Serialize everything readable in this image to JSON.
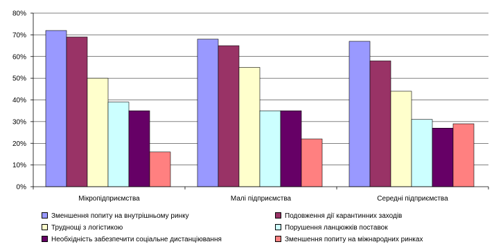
{
  "chart_data": {
    "type": "bar",
    "categories": [
      "Мікропідприємства",
      "Малі підприємства",
      "Середні підприємства"
    ],
    "series": [
      {
        "name": "Зменшення попиту на внутрішньому ринку",
        "values": [
          72,
          68,
          67
        ],
        "color": "#9999FF"
      },
      {
        "name": "Подовження дії карантинних заходів",
        "values": [
          69,
          65,
          58
        ],
        "color": "#993366"
      },
      {
        "name": "Труднощі з логістикою",
        "values": [
          50,
          55,
          44
        ],
        "color": "#FFFFCC"
      },
      {
        "name": "Порушення ланцюжків поставок",
        "values": [
          39,
          35,
          31
        ],
        "color": "#CCFFFF"
      },
      {
        "name": "Необхідність забезпечити соціальне дистанціювання",
        "values": [
          35,
          35,
          27
        ],
        "color": "#660066"
      },
      {
        "name": "Зменшення попиту на міжнародних ринках",
        "values": [
          16,
          22,
          29
        ],
        "color": "#FF8080"
      }
    ],
    "y_ticks": [
      "0%",
      "10%",
      "20%",
      "30%",
      "40%",
      "50%",
      "60%",
      "70%",
      "80%"
    ],
    "ylim": [
      0,
      80
    ],
    "title": "",
    "xlabel": "",
    "ylabel": "",
    "grid": true,
    "legend_position": "bottom"
  }
}
